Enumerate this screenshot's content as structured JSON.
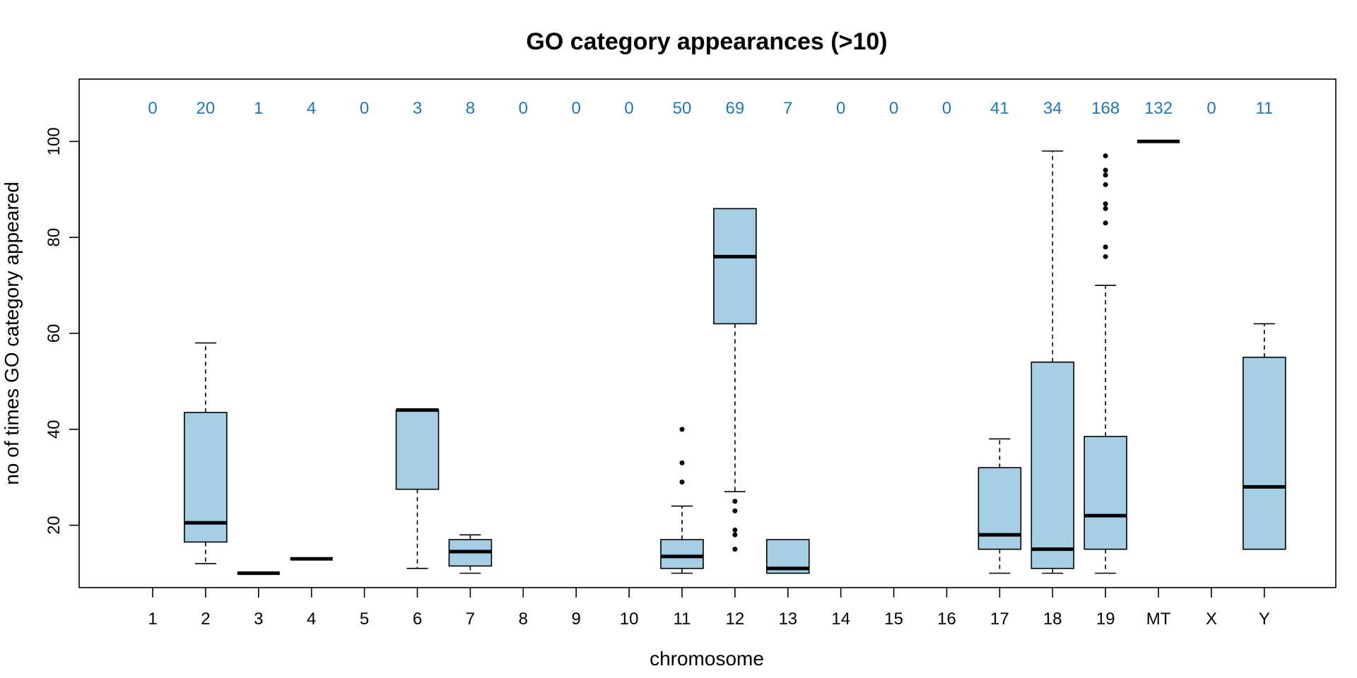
{
  "chart_data": {
    "type": "box",
    "title": "GO category appearances (>10)",
    "xlabel": "chromosome",
    "ylabel": "no of times GO category appeared",
    "ylim": [
      7,
      113
    ],
    "yticks": [
      20,
      40,
      60,
      80,
      100
    ],
    "count_color": "#1f78b4",
    "box_color": "#a6cee3",
    "categories": [
      {
        "label": "1",
        "count": "0"
      },
      {
        "label": "2",
        "count": "20",
        "whisker_low": 12,
        "q1": 16.5,
        "median": 20.5,
        "q3": 43.5,
        "whisker_high": 58,
        "outliers": []
      },
      {
        "label": "3",
        "count": "1",
        "whisker_low": 10,
        "q1": 10,
        "median": 10,
        "q3": 10,
        "whisker_high": 10,
        "outliers": []
      },
      {
        "label": "4",
        "count": "4",
        "whisker_low": 13,
        "q1": 13,
        "median": 13,
        "q3": 13,
        "whisker_high": 13,
        "outliers": []
      },
      {
        "label": "5",
        "count": "0"
      },
      {
        "label": "6",
        "count": "3",
        "whisker_low": 11,
        "q1": 27.5,
        "median": 44,
        "q3": 44,
        "whisker_high": 44,
        "outliers": []
      },
      {
        "label": "7",
        "count": "8",
        "whisker_low": 10,
        "q1": 11.5,
        "median": 14.5,
        "q3": 17,
        "whisker_high": 18,
        "outliers": []
      },
      {
        "label": "8",
        "count": "0"
      },
      {
        "label": "9",
        "count": "0"
      },
      {
        "label": "10",
        "count": "0"
      },
      {
        "label": "11",
        "count": "50",
        "whisker_low": 10,
        "q1": 11,
        "median": 13.5,
        "q3": 17,
        "whisker_high": 24,
        "outliers": [
          29,
          33,
          40
        ]
      },
      {
        "label": "12",
        "count": "69",
        "whisker_low": 27,
        "q1": 62,
        "median": 76,
        "q3": 86,
        "whisker_high": 86,
        "outliers": [
          15,
          18,
          19,
          23,
          25
        ]
      },
      {
        "label": "13",
        "count": "7",
        "whisker_low": 10,
        "q1": 10,
        "median": 11,
        "q3": 17,
        "whisker_high": 17,
        "outliers": []
      },
      {
        "label": "14",
        "count": "0"
      },
      {
        "label": "15",
        "count": "0"
      },
      {
        "label": "16",
        "count": "0"
      },
      {
        "label": "17",
        "count": "41",
        "whisker_low": 10,
        "q1": 15,
        "median": 18,
        "q3": 32,
        "whisker_high": 38,
        "outliers": []
      },
      {
        "label": "18",
        "count": "34",
        "whisker_low": 10,
        "q1": 11,
        "median": 15,
        "q3": 54,
        "whisker_high": 98,
        "outliers": []
      },
      {
        "label": "19",
        "count": "168",
        "whisker_low": 10,
        "q1": 15,
        "median": 22,
        "q3": 38.5,
        "whisker_high": 70,
        "outliers": [
          76,
          78,
          83,
          86,
          87,
          91,
          93,
          94,
          97
        ]
      },
      {
        "label": "MT",
        "count": "132",
        "whisker_low": 100,
        "q1": 100,
        "median": 100,
        "q3": 100,
        "whisker_high": 100,
        "outliers": []
      },
      {
        "label": "X",
        "count": "0"
      },
      {
        "label": "Y",
        "count": "11",
        "whisker_low": 15,
        "q1": 15,
        "median": 28,
        "q3": 55,
        "whisker_high": 62,
        "outliers": []
      }
    ]
  }
}
